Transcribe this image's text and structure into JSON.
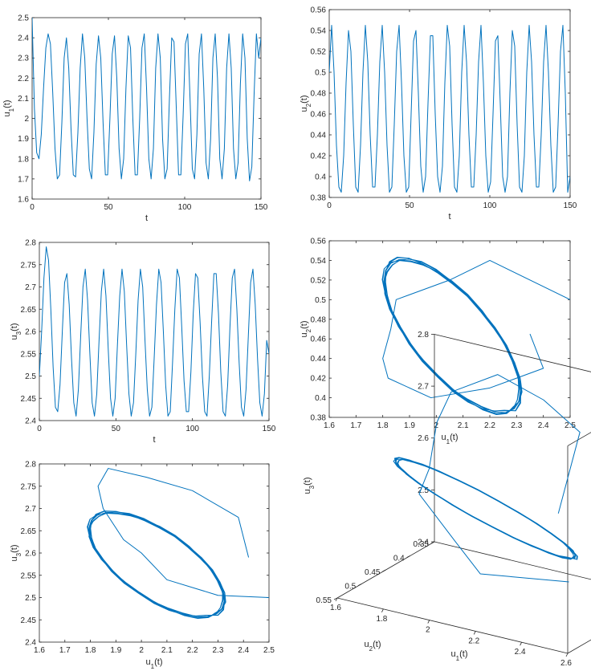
{
  "line_color": "#0072BD",
  "chart_data": [
    {
      "id": "p1",
      "type": "line",
      "xlabel": "t",
      "ylabel_base": "u",
      "ylabel_sub": "1",
      "ylabel_tail": "(t)",
      "xlim": [
        0,
        150
      ],
      "ylim": [
        1.6,
        2.5
      ],
      "xticks": [
        0,
        50,
        100,
        150
      ],
      "yticks": [
        1.6,
        1.7,
        1.8,
        1.9,
        2.0,
        2.1,
        2.2,
        2.3,
        2.4,
        2.5
      ],
      "ytick_labels": [
        "1.6",
        "1.7",
        "1.8",
        "1.9",
        "2",
        "2.1",
        "2.2",
        "2.3",
        "2.4",
        "2.5"
      ],
      "series": [
        {
          "x": [
            0,
            1.5,
            3,
            4.5,
            6,
            7.5,
            9,
            10.5,
            12,
            13.5,
            15,
            16.5,
            18,
            19.5,
            21,
            22.5,
            24,
            25.5,
            27,
            28.5,
            30,
            31.5,
            33,
            34.5,
            36,
            37.5,
            39,
            40.5,
            42,
            43.5,
            45,
            46.5,
            48,
            49.5,
            51,
            52.5,
            54,
            55.5,
            57,
            58.5,
            60,
            61.5,
            63,
            64.5,
            66,
            67.5,
            69,
            70.5,
            72,
            73.5,
            75,
            76.5,
            78,
            79.5,
            81,
            82.5,
            84,
            85.5,
            87,
            88.5,
            90,
            91.5,
            93,
            94.5,
            96,
            97.5,
            99,
            100.5,
            102,
            103.5,
            105,
            106.5,
            108,
            109.5,
            111,
            112.5,
            114,
            115.5,
            117,
            118.5,
            120,
            121.5,
            123,
            124.5,
            126,
            127.5,
            129,
            130.5,
            132,
            133.5,
            135,
            136.5,
            138,
            139.5,
            141,
            142.5,
            144,
            145.5,
            147,
            148.5,
            150
          ],
          "y": [
            2.5,
            2.05,
            1.83,
            1.8,
            1.92,
            2.15,
            2.35,
            2.42,
            2.37,
            2.13,
            1.85,
            1.7,
            1.72,
            1.98,
            2.3,
            2.4,
            2.25,
            1.95,
            1.72,
            1.71,
            1.93,
            2.25,
            2.42,
            2.3,
            2.0,
            1.75,
            1.7,
            1.93,
            2.27,
            2.41,
            2.3,
            1.98,
            1.72,
            1.72,
            2.0,
            2.32,
            2.41,
            2.2,
            1.85,
            1.7,
            1.8,
            2.15,
            2.41,
            2.35,
            2.0,
            1.72,
            1.72,
            2.0,
            2.35,
            2.42,
            2.15,
            1.8,
            1.7,
            1.85,
            2.25,
            2.42,
            2.3,
            1.9,
            1.7,
            1.75,
            2.1,
            2.4,
            2.38,
            2.05,
            1.72,
            1.72,
            2.02,
            2.37,
            2.42,
            2.1,
            1.75,
            1.7,
            1.92,
            2.32,
            2.42,
            2.15,
            1.78,
            1.7,
            1.9,
            2.3,
            2.42,
            2.2,
            1.8,
            1.7,
            1.85,
            2.25,
            2.42,
            2.25,
            1.85,
            1.7,
            1.78,
            2.17,
            2.42,
            2.3,
            1.9,
            1.69,
            1.76,
            2.12,
            2.42,
            2.3,
            2.4
          ]
        }
      ]
    },
    {
      "id": "p2",
      "type": "line",
      "xlabel": "t",
      "ylabel_base": "u",
      "ylabel_sub": "2",
      "ylabel_tail": "(t)",
      "xlim": [
        0,
        150
      ],
      "ylim": [
        0.38,
        0.56
      ],
      "xticks": [
        0,
        50,
        100,
        150
      ],
      "yticks": [
        0.38,
        0.4,
        0.42,
        0.44,
        0.46,
        0.48,
        0.5,
        0.52,
        0.54,
        0.56
      ],
      "ytick_labels": [
        "0.38",
        "0.4",
        "0.42",
        "0.44",
        "0.46",
        "0.48",
        "0.5",
        "0.52",
        "0.54",
        "0.56"
      ],
      "series": [
        {
          "x": [
            0,
            1.5,
            3,
            4.5,
            6,
            7.5,
            9,
            10.5,
            12,
            13.5,
            15,
            16.5,
            18,
            19.5,
            21,
            22.5,
            24,
            25.5,
            27,
            28.5,
            30,
            31.5,
            33,
            34.5,
            36,
            37.5,
            39,
            40.5,
            42,
            43.5,
            45,
            46.5,
            48,
            49.5,
            51,
            52.5,
            54,
            55.5,
            57,
            58.5,
            60,
            61.5,
            63,
            64.5,
            66,
            67.5,
            69,
            70.5,
            72,
            73.5,
            75,
            76.5,
            78,
            79.5,
            81,
            82.5,
            84,
            85.5,
            87,
            88.5,
            90,
            91.5,
            93,
            94.5,
            96,
            97.5,
            99,
            100.5,
            102,
            103.5,
            105,
            106.5,
            108,
            109.5,
            111,
            112.5,
            114,
            115.5,
            117,
            118.5,
            120,
            121.5,
            123,
            124.5,
            126,
            127.5,
            129,
            130.5,
            132,
            133.5,
            135,
            136.5,
            138,
            139.5,
            141,
            142.5,
            144,
            145.5,
            147,
            148.5,
            150
          ],
          "y": [
            0.5,
            0.545,
            0.5,
            0.43,
            0.39,
            0.385,
            0.42,
            0.49,
            0.54,
            0.52,
            0.45,
            0.39,
            0.385,
            0.43,
            0.5,
            0.545,
            0.51,
            0.44,
            0.39,
            0.39,
            0.44,
            0.51,
            0.545,
            0.5,
            0.43,
            0.385,
            0.39,
            0.45,
            0.52,
            0.545,
            0.49,
            0.42,
            0.385,
            0.39,
            0.46,
            0.53,
            0.54,
            0.48,
            0.41,
            0.385,
            0.4,
            0.47,
            0.535,
            0.535,
            0.46,
            0.4,
            0.385,
            0.41,
            0.49,
            0.545,
            0.525,
            0.45,
            0.39,
            0.385,
            0.42,
            0.5,
            0.545,
            0.51,
            0.44,
            0.39,
            0.39,
            0.44,
            0.51,
            0.545,
            0.49,
            0.42,
            0.385,
            0.395,
            0.46,
            0.53,
            0.535,
            0.47,
            0.4,
            0.385,
            0.4,
            0.48,
            0.54,
            0.525,
            0.45,
            0.39,
            0.385,
            0.42,
            0.5,
            0.545,
            0.51,
            0.44,
            0.39,
            0.39,
            0.44,
            0.51,
            0.545,
            0.5,
            0.43,
            0.385,
            0.39,
            0.45,
            0.52,
            0.545,
            0.48,
            0.385,
            0.4
          ]
        }
      ]
    },
    {
      "id": "p3",
      "type": "line",
      "xlabel": "t",
      "ylabel_base": "u",
      "ylabel_sub": "3",
      "ylabel_tail": "(t)",
      "xlim": [
        0,
        150
      ],
      "ylim": [
        2.4,
        2.8
      ],
      "xticks": [
        0,
        50,
        100,
        150
      ],
      "yticks": [
        2.4,
        2.45,
        2.5,
        2.55,
        2.6,
        2.65,
        2.7,
        2.75,
        2.8
      ],
      "ytick_labels": [
        "2.4",
        "2.45",
        "2.5",
        "2.55",
        "2.6",
        "2.65",
        "2.7",
        "2.75",
        "2.8"
      ],
      "series": [
        {
          "x": [
            0,
            1.5,
            3,
            4.5,
            6,
            7.5,
            9,
            10.5,
            12,
            13.5,
            15,
            16.5,
            18,
            19.5,
            21,
            22.5,
            24,
            25.5,
            27,
            28.5,
            30,
            31.5,
            33,
            34.5,
            36,
            37.5,
            39,
            40.5,
            42,
            43.5,
            45,
            46.5,
            48,
            49.5,
            51,
            52.5,
            54,
            55.5,
            57,
            58.5,
            60,
            61.5,
            63,
            64.5,
            66,
            67.5,
            69,
            70.5,
            72,
            73.5,
            75,
            76.5,
            78,
            79.5,
            81,
            82.5,
            84,
            85.5,
            87,
            88.5,
            90,
            91.5,
            93,
            94.5,
            96,
            97.5,
            99,
            100.5,
            102,
            103.5,
            105,
            106.5,
            108,
            109.5,
            111,
            112.5,
            114,
            115.5,
            117,
            118.5,
            120,
            121.5,
            123,
            124.5,
            126,
            127.5,
            129,
            130.5,
            132,
            133.5,
            135,
            136.5,
            138,
            139.5,
            141,
            142.5,
            144,
            145.5,
            147,
            148.5,
            150
          ],
          "y": [
            2.5,
            2.6,
            2.72,
            2.79,
            2.76,
            2.65,
            2.52,
            2.43,
            2.42,
            2.48,
            2.6,
            2.71,
            2.73,
            2.66,
            2.54,
            2.44,
            2.41,
            2.47,
            2.59,
            2.7,
            2.74,
            2.67,
            2.55,
            2.44,
            2.41,
            2.46,
            2.58,
            2.69,
            2.74,
            2.68,
            2.56,
            2.45,
            2.41,
            2.45,
            2.57,
            2.68,
            2.74,
            2.69,
            2.57,
            2.46,
            2.41,
            2.44,
            2.55,
            2.67,
            2.74,
            2.7,
            2.58,
            2.47,
            2.41,
            2.43,
            2.54,
            2.66,
            2.74,
            2.71,
            2.6,
            2.48,
            2.41,
            2.42,
            2.53,
            2.65,
            2.74,
            2.72,
            2.61,
            2.49,
            2.42,
            2.42,
            2.51,
            2.64,
            2.73,
            2.72,
            2.62,
            2.5,
            2.42,
            2.41,
            2.5,
            2.62,
            2.73,
            2.73,
            2.64,
            2.51,
            2.42,
            2.41,
            2.48,
            2.61,
            2.72,
            2.74,
            2.65,
            2.53,
            2.43,
            2.41,
            2.47,
            2.59,
            2.71,
            2.74,
            2.66,
            2.54,
            2.44,
            2.41,
            2.46,
            2.58,
            2.55
          ]
        }
      ]
    },
    {
      "id": "p4",
      "type": "line",
      "xlabel_base": "u",
      "xlabel_sub": "1",
      "xlabel_tail": "(t)",
      "ylabel_base": "u",
      "ylabel_sub": "2",
      "ylabel_tail": "(t)",
      "xlim": [
        1.6,
        2.5
      ],
      "ylim": [
        0.38,
        0.56
      ],
      "xticks": [
        1.6,
        1.7,
        1.8,
        1.9,
        2.0,
        2.1,
        2.2,
        2.3,
        2.4,
        2.5
      ],
      "xtick_labels": [
        "1.6",
        "1.7",
        "1.8",
        "1.9",
        "2",
        "2.1",
        "2.2",
        "2.3",
        "2.4",
        "2.5"
      ],
      "yticks": [
        0.38,
        0.4,
        0.42,
        0.44,
        0.46,
        0.48,
        0.5,
        0.52,
        0.54,
        0.56
      ],
      "ytick_labels": [
        "0.38",
        "0.4",
        "0.42",
        "0.44",
        "0.46",
        "0.48",
        "0.5",
        "0.52",
        "0.54",
        "0.56"
      ],
      "limit_cycle": {
        "center": [
          2.06,
          0.463
        ],
        "a": [
          0.2,
          -0.078
        ],
        "b": [
          -0.158,
          -0.0081
        ],
        "loops": 8
      },
      "transient": {
        "x": [
          2.5,
          2.2,
          2.05,
          1.85,
          1.83,
          1.8,
          1.82,
          1.98,
          2.2,
          2.4,
          2.35
        ],
        "y": [
          0.5,
          0.54,
          0.52,
          0.5,
          0.47,
          0.44,
          0.42,
          0.4,
          0.41,
          0.43,
          0.465
        ]
      }
    },
    {
      "id": "p5",
      "type": "line",
      "xlabel_base": "u",
      "xlabel_sub": "1",
      "xlabel_tail": "(t)",
      "ylabel_base": "u",
      "ylabel_sub": "3",
      "ylabel_tail": "(t)",
      "xlim": [
        1.6,
        2.5
      ],
      "ylim": [
        2.4,
        2.8
      ],
      "xticks": [
        1.6,
        1.7,
        1.8,
        1.9,
        2.0,
        2.1,
        2.2,
        2.3,
        2.4,
        2.5
      ],
      "xtick_labels": [
        "1.6",
        "1.7",
        "1.8",
        "1.9",
        "2",
        "2.1",
        "2.2",
        "2.3",
        "2.4",
        "2.5"
      ],
      "yticks": [
        2.4,
        2.45,
        2.5,
        2.55,
        2.6,
        2.65,
        2.7,
        2.75,
        2.8
      ],
      "ytick_labels": [
        "2.4",
        "2.45",
        "2.5",
        "2.55",
        "2.6",
        "2.65",
        "2.7",
        "2.75",
        "2.8"
      ],
      "limit_cycle": {
        "center": [
          2.06,
          2.574
        ],
        "a": [
          0.2,
          -0.117
        ],
        "b": [
          -0.174,
          -0.0146
        ],
        "loops": 8
      },
      "transient": {
        "x": [
          2.5,
          2.3,
          2.1,
          2.0,
          1.93,
          1.85,
          1.83,
          1.87,
          2.02,
          2.2,
          2.38,
          2.42
        ],
        "y": [
          2.5,
          2.505,
          2.54,
          2.6,
          2.63,
          2.7,
          2.75,
          2.79,
          2.77,
          2.74,
          2.68,
          2.59
        ]
      }
    },
    {
      "id": "p6",
      "type": "line3d",
      "xlabel_base": "u",
      "xlabel_sub": "1",
      "xlabel_tail": "(t)",
      "ylabel_base": "u",
      "ylabel_sub": "2",
      "ylabel_tail": "(t)",
      "zlabel_base": "u",
      "zlabel_sub": "3",
      "zlabel_tail": "(t)",
      "xlim": [
        1.6,
        2.6
      ],
      "ylim": [
        0.35,
        0.55
      ],
      "zlim": [
        2.4,
        2.8
      ],
      "xticks": [
        1.6,
        1.8,
        2.0,
        2.2,
        2.4,
        2.6
      ],
      "xtick_labels": [
        "1.6",
        "1.8",
        "2",
        "2.2",
        "2.4",
        "2.6"
      ],
      "yticks": [
        0.35,
        0.4,
        0.45,
        0.5,
        0.55
      ],
      "ytick_labels": [
        "0.35",
        "0.4",
        "0.45",
        "0.5",
        "0.55"
      ],
      "zticks": [
        2.4,
        2.5,
        2.6,
        2.7,
        2.8
      ],
      "ztick_labels": [
        "2.4",
        "2.5",
        "2.6",
        "2.7",
        "2.8"
      ],
      "limit_cycle": {
        "center": [
          2.06,
          0.463,
          2.574
        ],
        "a": [
          0.2,
          -0.078,
          -0.117
        ],
        "b": [
          -0.158,
          -0.0081,
          -0.0146
        ],
        "loops": 8
      },
      "transient": {
        "x": [
          2.5,
          2.2,
          2.05,
          1.85,
          1.83,
          1.8,
          1.82,
          1.98,
          2.2,
          2.4,
          2.38
        ],
        "y": [
          0.5,
          0.54,
          0.52,
          0.5,
          0.47,
          0.44,
          0.42,
          0.4,
          0.41,
          0.43,
          0.465
        ],
        "z": [
          2.5,
          2.505,
          2.54,
          2.6,
          2.63,
          2.7,
          2.75,
          2.79,
          2.77,
          2.74,
          2.6
        ]
      }
    }
  ]
}
